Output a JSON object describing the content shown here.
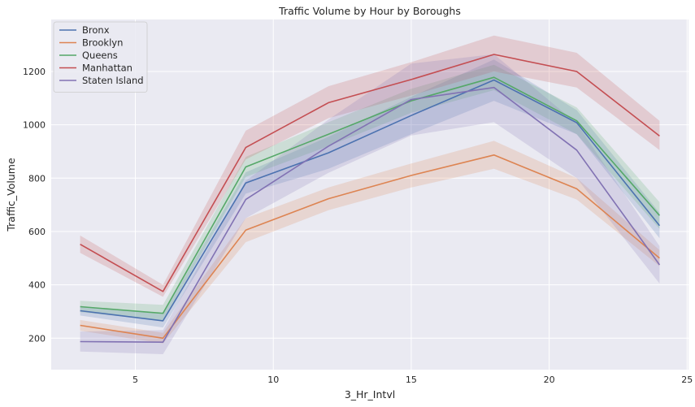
{
  "chart_data": {
    "type": "line",
    "title": "Traffic Volume by Hour by Boroughs",
    "xlabel": "3_Hr_Intvl",
    "ylabel": "Traffic_Volume",
    "x": [
      3,
      6,
      9,
      12,
      15,
      18,
      21,
      24
    ],
    "xlim": [
      1.95,
      25.05
    ],
    "ylim": [
      82,
      1395
    ],
    "xticks": [
      5,
      10,
      15,
      20,
      25
    ],
    "yticks": [
      200,
      400,
      600,
      800,
      1000,
      1200
    ],
    "grid": true,
    "legend_position": "top-left",
    "background_color": "#eaeaf2",
    "series": [
      {
        "name": "Bronx",
        "color": "#4c72b0",
        "values": [
          303,
          265,
          782,
          895,
          1035,
          1168,
          1008,
          622
        ],
        "ci_lower": [
          285,
          240,
          742,
          835,
          965,
          1090,
          965,
          575
        ],
        "ci_upper": [
          321,
          290,
          822,
          955,
          1105,
          1245,
          1055,
          670
        ]
      },
      {
        "name": "Brooklyn",
        "color": "#dd8452",
        "values": [
          248,
          200,
          605,
          723,
          810,
          887,
          760,
          500
        ],
        "ci_lower": [
          228,
          180,
          560,
          680,
          765,
          835,
          720,
          470
        ],
        "ci_upper": [
          268,
          220,
          650,
          765,
          855,
          940,
          800,
          530
        ]
      },
      {
        "name": "Queens",
        "color": "#55a868",
        "values": [
          318,
          293,
          842,
          965,
          1090,
          1178,
          1015,
          660
        ],
        "ci_lower": [
          298,
          265,
          805,
          920,
          1045,
          1130,
          965,
          610
        ],
        "ci_upper": [
          340,
          325,
          880,
          1010,
          1135,
          1225,
          1065,
          710
        ]
      },
      {
        "name": "Manhattan",
        "color": "#c44e52",
        "values": [
          552,
          375,
          915,
          1083,
          1170,
          1264,
          1200,
          958
        ],
        "ci_lower": [
          520,
          355,
          870,
          1025,
          1110,
          1200,
          1140,
          905
        ],
        "ci_upper": [
          585,
          400,
          978,
          1145,
          1235,
          1335,
          1270,
          1015
        ]
      },
      {
        "name": "Staten Island",
        "color": "#8172b3",
        "values": [
          187,
          185,
          720,
          920,
          1095,
          1140,
          905,
          475
        ],
        "ci_lower": [
          150,
          140,
          650,
          820,
          960,
          1010,
          800,
          405
        ],
        "ci_upper": [
          225,
          230,
          790,
          1020,
          1230,
          1265,
          1005,
          545
        ]
      }
    ]
  }
}
